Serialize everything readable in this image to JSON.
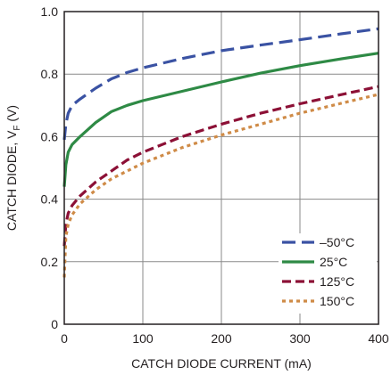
{
  "chart_data": {
    "type": "line",
    "xlabel": "CATCH DIODE CURRENT (mA)",
    "ylabel": {
      "prefix": "CATCH DIODE, V",
      "subscript": "F",
      "suffix": " (V)"
    },
    "xlim": [
      0,
      400
    ],
    "ylim": [
      0,
      1.0
    ],
    "xticks": [
      "0",
      "100",
      "200",
      "300",
      "400"
    ],
    "yticks": [
      "0",
      "0.2",
      "0.4",
      "0.6",
      "0.8",
      "1.0"
    ],
    "grid": true,
    "legend_position": "bottom-right",
    "series": [
      {
        "name": "–50°C",
        "color": "#3a52a3",
        "dash": "long-dash",
        "points": [
          [
            0,
            0.59
          ],
          [
            2,
            0.64
          ],
          [
            5,
            0.675
          ],
          [
            10,
            0.7
          ],
          [
            20,
            0.72
          ],
          [
            40,
            0.755
          ],
          [
            60,
            0.785
          ],
          [
            80,
            0.805
          ],
          [
            100,
            0.82
          ],
          [
            150,
            0.85
          ],
          [
            200,
            0.875
          ],
          [
            250,
            0.893
          ],
          [
            300,
            0.91
          ],
          [
            350,
            0.928
          ],
          [
            400,
            0.945
          ]
        ]
      },
      {
        "name": "25°C",
        "color": "#2e8a45",
        "dash": "solid",
        "points": [
          [
            0,
            0.44
          ],
          [
            2,
            0.51
          ],
          [
            5,
            0.55
          ],
          [
            10,
            0.575
          ],
          [
            20,
            0.6
          ],
          [
            40,
            0.645
          ],
          [
            60,
            0.68
          ],
          [
            80,
            0.7
          ],
          [
            100,
            0.715
          ],
          [
            150,
            0.745
          ],
          [
            200,
            0.775
          ],
          [
            250,
            0.803
          ],
          [
            300,
            0.827
          ],
          [
            350,
            0.848
          ],
          [
            400,
            0.867
          ]
        ]
      },
      {
        "name": "125°C",
        "color": "#8c1036",
        "dash": "dash",
        "points": [
          [
            0,
            0.25
          ],
          [
            2,
            0.32
          ],
          [
            5,
            0.355
          ],
          [
            10,
            0.38
          ],
          [
            20,
            0.41
          ],
          [
            40,
            0.455
          ],
          [
            60,
            0.49
          ],
          [
            80,
            0.525
          ],
          [
            100,
            0.55
          ],
          [
            150,
            0.6
          ],
          [
            200,
            0.64
          ],
          [
            250,
            0.675
          ],
          [
            300,
            0.705
          ],
          [
            350,
            0.733
          ],
          [
            400,
            0.76
          ]
        ]
      },
      {
        "name": "150°C",
        "color": "#cf8b47",
        "dash": "dot",
        "points": [
          [
            0,
            0.15
          ],
          [
            2,
            0.28
          ],
          [
            5,
            0.32
          ],
          [
            10,
            0.35
          ],
          [
            20,
            0.385
          ],
          [
            40,
            0.43
          ],
          [
            60,
            0.465
          ],
          [
            80,
            0.49
          ],
          [
            100,
            0.515
          ],
          [
            150,
            0.565
          ],
          [
            200,
            0.605
          ],
          [
            250,
            0.64
          ],
          [
            300,
            0.675
          ],
          [
            350,
            0.705
          ],
          [
            400,
            0.735
          ]
        ]
      }
    ]
  }
}
